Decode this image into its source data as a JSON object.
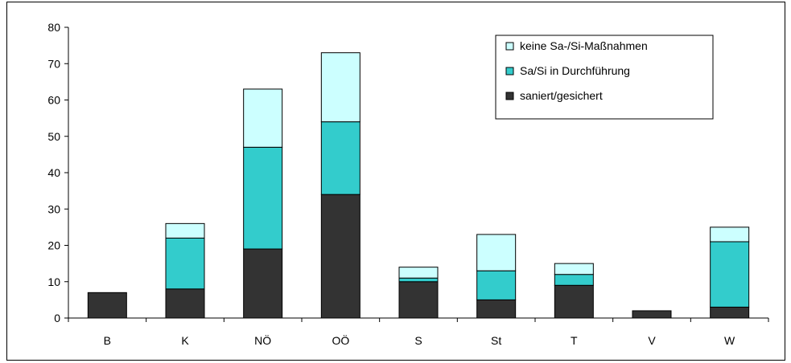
{
  "chart_data": {
    "type": "bar",
    "stacked": true,
    "title": "",
    "xlabel": "",
    "ylabel": "",
    "ylim": [
      0,
      80
    ],
    "yticks": [
      0,
      10,
      20,
      30,
      40,
      50,
      60,
      70,
      80
    ],
    "grid": false,
    "legend_position": "top-right",
    "categories": [
      "B",
      "K",
      "NÖ",
      "OÖ",
      "S",
      "St",
      "T",
      "V",
      "W"
    ],
    "series": [
      {
        "name": "saniert/gesichert",
        "color": "#333333",
        "values": [
          7,
          8,
          19,
          34,
          10,
          5,
          9,
          2,
          3
        ]
      },
      {
        "name": "Sa/Si in Durchführung",
        "color": "#33CCCC",
        "values": [
          0,
          14,
          28,
          20,
          1,
          8,
          3,
          0,
          18
        ]
      },
      {
        "name": "keine Sa-/Si-Maßnahmen",
        "color": "#CCFFFF",
        "values": [
          0,
          4,
          16,
          19,
          3,
          10,
          3,
          0,
          4
        ]
      }
    ]
  }
}
